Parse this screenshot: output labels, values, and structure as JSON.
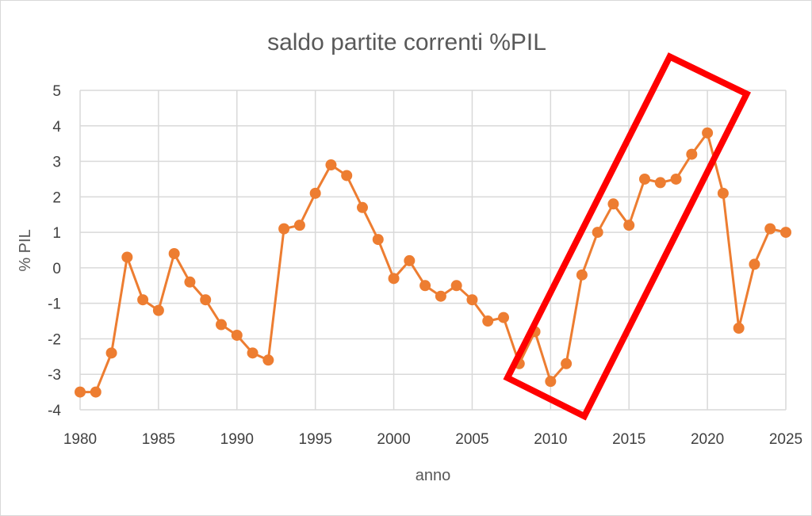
{
  "chart_data": {
    "type": "line",
    "title": "saldo partite correnti %PIL",
    "xlabel": "anno",
    "ylabel": "% PIL",
    "xlim": [
      1980,
      2025
    ],
    "ylim": [
      -4,
      5
    ],
    "x_ticks": [
      1980,
      1985,
      1990,
      1995,
      2000,
      2005,
      2010,
      2015,
      2020,
      2025
    ],
    "y_ticks": [
      -4,
      -3,
      -2,
      -1,
      0,
      1,
      2,
      3,
      4,
      5
    ],
    "grid": true,
    "legend": "none",
    "series": [
      {
        "color": "#ed7d31",
        "x": [
          1980,
          1981,
          1982,
          1983,
          1984,
          1985,
          1986,
          1987,
          1988,
          1989,
          1990,
          1991,
          1992,
          1993,
          1994,
          1995,
          1996,
          1997,
          1998,
          1999,
          2000,
          2001,
          2002,
          2003,
          2004,
          2005,
          2006,
          2007,
          2008,
          2009,
          2010,
          2011,
          2012,
          2013,
          2014,
          2015,
          2016,
          2017,
          2018,
          2019,
          2020,
          2021,
          2022,
          2023,
          2024,
          2025
        ],
        "values": [
          -3.5,
          -3.5,
          -2.4,
          0.3,
          -0.9,
          -1.2,
          0.4,
          -0.4,
          -0.9,
          -1.6,
          -1.9,
          -2.4,
          -2.6,
          1.1,
          1.2,
          2.1,
          2.9,
          2.6,
          1.7,
          0.8,
          -0.3,
          0.2,
          -0.5,
          -0.8,
          -0.5,
          -0.9,
          -1.5,
          -1.4,
          -2.7,
          -1.8,
          -3.2,
          -2.7,
          -0.2,
          1.0,
          1.8,
          1.2,
          2.5,
          2.4,
          2.5,
          3.2,
          3.8,
          2.1,
          -1.7,
          0.1,
          1.1,
          1.0
        ]
      }
    ],
    "annotations": [
      {
        "type": "rectangle-outline",
        "color": "#ff0000",
        "corners_data": [
          [
            2007.25,
            -3.1
          ],
          [
            2012.15,
            -4.18
          ],
          [
            2022.5,
            4.9
          ],
          [
            2017.6,
            5.95
          ]
        ]
      }
    ]
  }
}
